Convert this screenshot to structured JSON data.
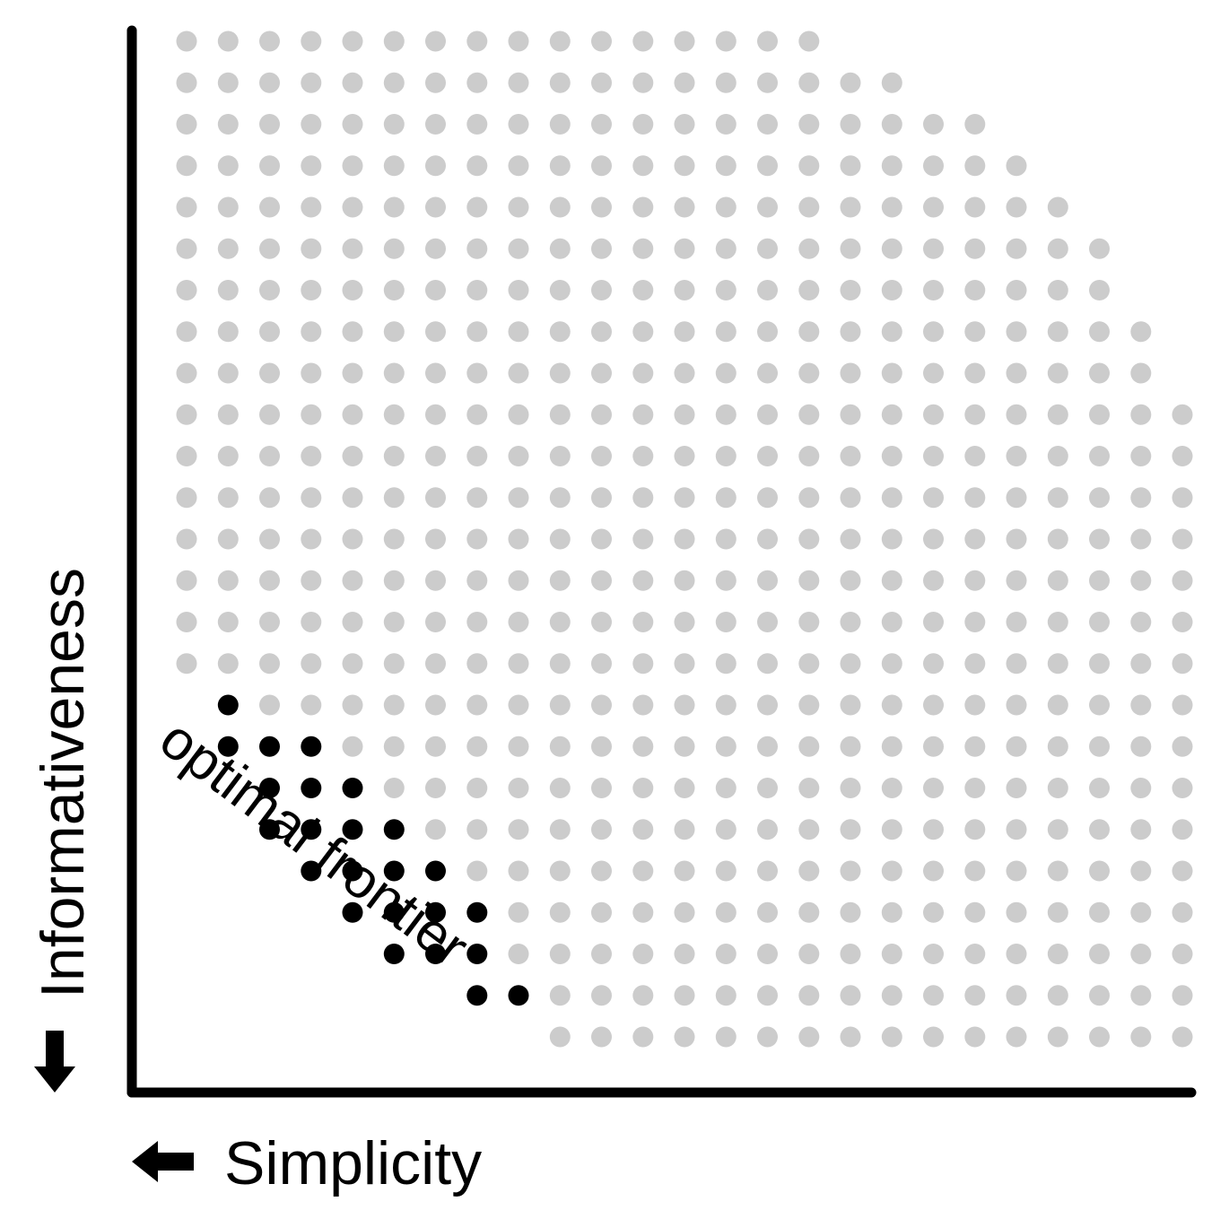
{
  "chart_data": {
    "type": "scatter",
    "xlabel": "Simplicity",
    "ylabel": "Informativeness",
    "annotation": "optimal frontier",
    "grid": {
      "rows": 25,
      "columns": 25,
      "row_lengths": [
        16,
        18,
        20,
        21,
        22,
        23,
        23,
        24,
        24,
        25,
        25,
        25,
        25,
        25,
        25,
        25,
        25,
        25,
        25,
        25,
        25,
        25,
        25,
        25,
        25
      ],
      "row_start_columns": [
        0,
        0,
        0,
        0,
        0,
        0,
        0,
        0,
        0,
        0,
        0,
        0,
        0,
        0,
        0,
        0,
        1,
        1,
        2,
        2,
        3,
        4,
        5,
        7,
        9
      ]
    },
    "series": [
      {
        "name": "optimal frontier",
        "color": "#000000",
        "points": [
          [
            1,
            16
          ],
          [
            1,
            17
          ],
          [
            2,
            17
          ],
          [
            3,
            17
          ],
          [
            2,
            18
          ],
          [
            3,
            18
          ],
          [
            4,
            18
          ],
          [
            2,
            19
          ],
          [
            3,
            19
          ],
          [
            4,
            19
          ],
          [
            5,
            19
          ],
          [
            3,
            20
          ],
          [
            4,
            20
          ],
          [
            5,
            20
          ],
          [
            6,
            20
          ],
          [
            4,
            21
          ],
          [
            5,
            21
          ],
          [
            6,
            21
          ],
          [
            7,
            21
          ],
          [
            5,
            22
          ],
          [
            6,
            22
          ],
          [
            7,
            22
          ],
          [
            7,
            23
          ],
          [
            8,
            23
          ]
        ]
      }
    ],
    "background_color": "#cccccc",
    "axis_color": "#000000"
  }
}
